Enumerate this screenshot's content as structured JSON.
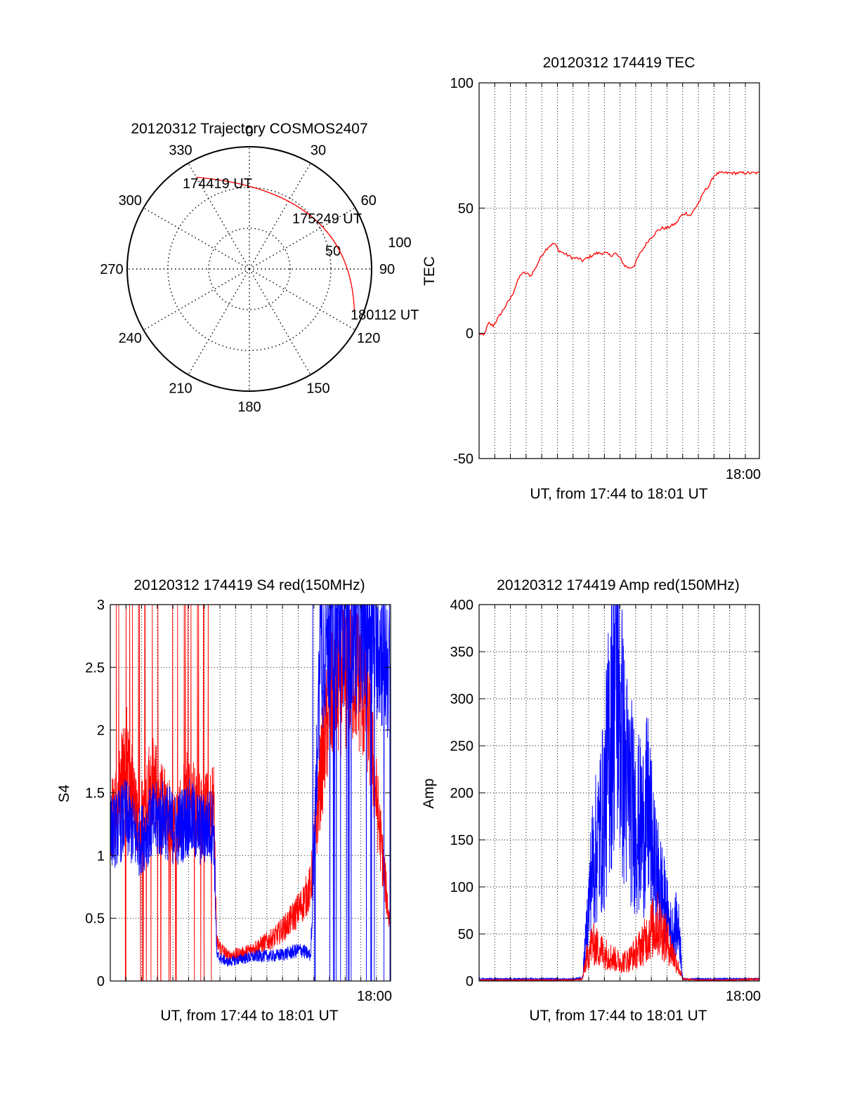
{
  "colors": {
    "red": "#ff0000",
    "blue": "#0000ff",
    "axis": "#000000"
  },
  "chart_data": [
    {
      "type": "polar",
      "title": "20120312 Trajectory COSMOS2407",
      "azimuth_labels": [
        "0",
        "30",
        "60",
        "90",
        "120",
        "150",
        "180",
        "210",
        "240",
        "270",
        "300",
        "330"
      ],
      "radial_labels": [
        "50",
        "100"
      ],
      "track": {
        "start": {
          "az": 330,
          "el": 12
        },
        "end": {
          "az": 113,
          "el": 6
        },
        "mid_label_at": {
          "az": 57,
          "el": 45
        }
      },
      "annotations": [
        "174419 UT",
        "175249 UT",
        "180112 UT"
      ]
    },
    {
      "type": "line",
      "title": "20120312 174419 TEC",
      "ylabel": "TEC",
      "xlabel": "UT, from 17:44 to 18:01 UT",
      "xlim": [
        0,
        17.9
      ],
      "ylim": [
        -50,
        100
      ],
      "yticks": [
        "100",
        "50",
        "0",
        "-50"
      ],
      "xtick_label": "18:00",
      "xtick_value": 16,
      "series": [
        {
          "name": "TEC",
          "color": "#ff0000",
          "x": [
            0,
            0.3,
            0.6,
            0.9,
            1.2,
            1.5,
            1.8,
            2.1,
            2.4,
            2.7,
            3.0,
            3.3,
            3.6,
            3.9,
            4.2,
            4.5,
            4.8,
            5.1,
            5.4,
            5.7,
            6.0,
            6.3,
            6.6,
            6.9,
            7.2,
            7.5,
            7.8,
            8.1,
            8.4,
            8.7,
            9.0,
            9.3,
            9.6,
            9.9,
            10.2,
            10.5,
            10.8,
            11.1,
            11.4,
            11.7,
            12.0,
            12.3,
            12.6,
            12.9,
            13.2,
            13.5,
            13.8,
            14.1,
            14.4,
            14.7,
            15.0,
            15.3,
            15.6,
            15.9,
            16.2,
            16.5,
            16.8,
            17.1,
            17.4,
            17.7,
            17.9
          ],
          "y": [
            0,
            -1,
            4,
            3,
            6,
            9,
            12,
            15,
            20,
            24,
            24,
            23,
            26,
            30,
            33,
            35,
            36,
            33,
            32,
            31,
            30,
            30,
            29,
            30,
            31,
            32,
            32,
            32,
            31,
            32,
            30,
            27,
            26,
            27,
            31,
            34,
            37,
            39,
            41,
            42,
            42,
            43,
            44,
            47,
            48,
            47,
            50,
            53,
            57,
            59,
            63,
            64,
            64,
            64,
            64,
            64,
            64,
            64,
            64,
            64,
            64
          ]
        }
      ]
    },
    {
      "type": "line",
      "title": "20120312 174419 S4 red(150MHz)",
      "ylabel": "S4",
      "xlabel": "UT, from 17:44 to 18:01 UT",
      "xlim": [
        0,
        17.9
      ],
      "ylim": [
        0,
        3
      ],
      "yticks": [
        "3",
        "2.5",
        "2",
        "1.5",
        "1",
        "0.5",
        "0"
      ],
      "xtick_label": "18:00",
      "xtick_value": 16,
      "series": [
        {
          "name": "S4 red",
          "color": "#ff0000",
          "x": [
            0.3,
            1.0,
            1.8,
            2.6,
            3.4,
            4.2,
            5.0,
            5.8,
            6.6,
            6.8,
            7.5,
            8.5,
            9.5,
            10.5,
            11.3,
            12.2,
            12.8,
            13.4,
            14.0,
            14.8,
            15.6,
            16.4,
            17.2,
            17.8
          ],
          "y": [
            1.3,
            1.8,
            1.2,
            1.6,
            1.4,
            1.2,
            1.5,
            1.3,
            1.4,
            0.3,
            0.2,
            0.22,
            0.28,
            0.35,
            0.45,
            0.6,
            0.75,
            1.6,
            2.2,
            2.4,
            2.5,
            2.2,
            1.2,
            0.5
          ]
        },
        {
          "name": "S4 blue",
          "color": "#0000ff",
          "x": [
            0.3,
            1.0,
            1.8,
            2.6,
            3.4,
            4.2,
            5.0,
            5.8,
            6.6,
            6.8,
            7.5,
            8.5,
            9.5,
            10.5,
            11.3,
            12.2,
            12.8,
            13.4,
            14.0,
            14.8,
            15.6,
            16.4,
            17.2,
            17.8
          ],
          "y": [
            1.2,
            1.3,
            1.1,
            1.25,
            1.3,
            1.2,
            1.3,
            1.2,
            1.25,
            0.2,
            0.15,
            0.18,
            0.2,
            0.2,
            0.22,
            0.25,
            0.2,
            2.6,
            2.8,
            2.9,
            2.8,
            2.9,
            2.7,
            2.5
          ]
        }
      ]
    },
    {
      "type": "line",
      "title": "20120312 174419 Amp red(150MHz)",
      "ylabel": "Amp",
      "xlabel": "UT, from 17:44 to 18:01 UT",
      "xlim": [
        0,
        17.9
      ],
      "ylim": [
        0,
        400
      ],
      "yticks": [
        "400",
        "350",
        "300",
        "250",
        "200",
        "150",
        "100",
        "50",
        "0"
      ],
      "xtick_label": "18:00",
      "xtick_value": 16,
      "series": [
        {
          "name": "Amp blue",
          "color": "#0000ff",
          "x": [
            0,
            2,
            4,
            6,
            6.6,
            6.8,
            7.2,
            7.6,
            8.0,
            8.3,
            8.6,
            8.8,
            9.0,
            9.3,
            9.6,
            10.0,
            10.4,
            10.8,
            11.2,
            11.6,
            12.0,
            12.3,
            12.6,
            12.8,
            13.0,
            14,
            16,
            17.9
          ],
          "y": [
            2,
            2,
            2,
            2,
            3,
            40,
            120,
            150,
            180,
            250,
            320,
            340,
            280,
            220,
            200,
            170,
            160,
            180,
            120,
            100,
            70,
            50,
            60,
            50,
            2,
            2,
            2,
            2
          ]
        },
        {
          "name": "Amp red",
          "color": "#ff0000",
          "x": [
            0,
            2,
            4,
            6,
            6.6,
            6.8,
            7.2,
            7.6,
            8.0,
            8.5,
            9.0,
            9.5,
            10.0,
            10.5,
            11.0,
            11.4,
            11.8,
            12.2,
            12.6,
            13.0,
            14,
            16,
            17.9
          ],
          "y": [
            1,
            1,
            1,
            1,
            2,
            20,
            40,
            35,
            30,
            25,
            20,
            22,
            30,
            40,
            55,
            60,
            50,
            35,
            20,
            2,
            1,
            1,
            2
          ]
        }
      ]
    }
  ]
}
